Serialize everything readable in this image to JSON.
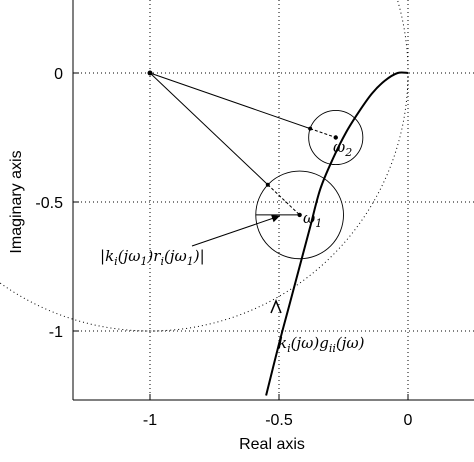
{
  "chart_data": {
    "type": "line",
    "title": "",
    "xlabel": "Real axis",
    "ylabel": "Imaginary axis",
    "xlim": [
      -1.25,
      0.25
    ],
    "ylim": [
      -1.25,
      0.25
    ],
    "xticks": [
      -1,
      -0.5,
      0
    ],
    "xtick_labels": [
      "-1",
      "-0.5",
      "0"
    ],
    "yticks": [
      0,
      -0.5,
      -1
    ],
    "ytick_labels": [
      "0",
      "-0.5",
      "-1"
    ],
    "grid": true,
    "series": [
      {
        "name": "k_i(jω)g_ii(jω)",
        "x": [
          -0.55,
          -0.5,
          -0.46,
          -0.42,
          -0.38,
          -0.34,
          -0.29,
          -0.24,
          -0.19,
          -0.14,
          -0.09,
          -0.04,
          0.0
        ],
        "y": [
          -1.25,
          -1.05,
          -0.9,
          -0.75,
          -0.6,
          -0.45,
          -0.33,
          -0.23,
          -0.15,
          -0.08,
          -0.03,
          0.0,
          0.0
        ]
      }
    ],
    "unit_circle": {
      "center": [
        -1,
        0
      ],
      "radius": 1,
      "style": "dotted"
    },
    "critical_point": [
      -1,
      0
    ],
    "disk_omega1": {
      "center": [
        -0.42,
        -0.55
      ],
      "radius": 0.17
    },
    "disk_omega2": {
      "center": [
        -0.28,
        -0.25
      ],
      "radius": 0.105
    },
    "omega1_point": [
      -0.42,
      -0.55
    ],
    "omega2_point": [
      -0.28,
      -0.25
    ],
    "annotations": {
      "omega1": "ω1",
      "omega2": "ω2",
      "radius_label": "|k_i(jω1)r_i(jω1)|",
      "curve_label": "k_i(jω)g_ii(jω)"
    }
  },
  "labels": {
    "omega1_main": "ω",
    "omega1_sub": "1",
    "omega2_main": "ω",
    "omega2_sub": "2",
    "radius_k": "k",
    "radius_i": "i",
    "radius_args1": "(jω",
    "radius_one": "1",
    "radius_r": ")r",
    "radius_args2": "(jω",
    "radius_close": ")|",
    "radius_open": "|",
    "curve_k": "k",
    "curve_i": "i",
    "curve_mid": "(jω)g",
    "curve_ii": "ii",
    "curve_end": "(jω)"
  }
}
